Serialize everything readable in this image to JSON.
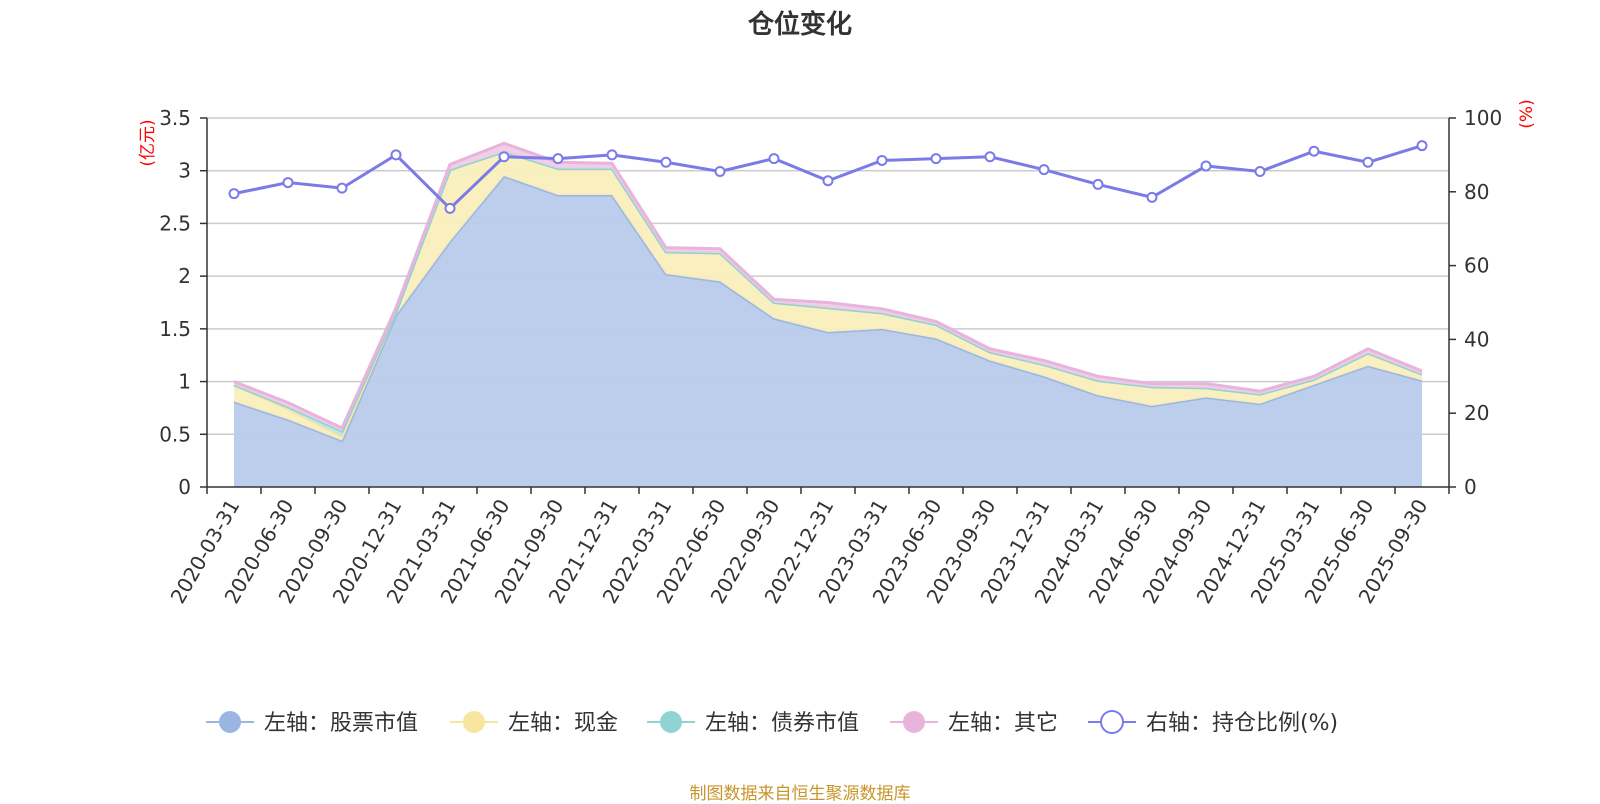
{
  "chart_data": {
    "type": "area",
    "title": "仓位变化",
    "source": "制图数据来自恒生聚源数据库",
    "left_axis": {
      "unit": "(亿元)",
      "ylim": [
        0,
        3.5
      ],
      "ticks": [
        "0",
        "0.5",
        "1",
        "1.5",
        "2",
        "2.5",
        "3",
        "3.5"
      ]
    },
    "right_axis": {
      "unit": "(%)",
      "ylim": [
        0,
        100
      ],
      "ticks": [
        "0",
        "20",
        "40",
        "60",
        "80",
        "100"
      ]
    },
    "categories": [
      "2020-03-31",
      "2020-06-30",
      "2020-09-30",
      "2020-12-31",
      "2021-03-31",
      "2021-06-30",
      "2021-09-30",
      "2021-12-31",
      "2022-03-31",
      "2022-06-30",
      "2022-09-30",
      "2022-12-31",
      "2023-03-31",
      "2023-06-30",
      "2023-09-30",
      "2023-12-31",
      "2024-03-31",
      "2024-06-30",
      "2024-09-30",
      "2024-12-31",
      "2025-03-31",
      "2025-06-30",
      "2025-09-30"
    ],
    "series": [
      {
        "name": "左轴：股票市值",
        "axis": "left",
        "kind": "area",
        "color": "#9ab6e0",
        "fill": "#b8cbea",
        "values": [
          0.81,
          0.64,
          0.44,
          1.63,
          2.33,
          2.95,
          2.77,
          2.77,
          2.02,
          1.95,
          1.6,
          1.47,
          1.5,
          1.41,
          1.2,
          1.05,
          0.87,
          0.77,
          0.85,
          0.79,
          0.97,
          1.15,
          1.01
        ]
      },
      {
        "name": "左轴：现金",
        "axis": "left",
        "kind": "area",
        "color": "#f8e6a0",
        "fill": "#faeeba",
        "values": [
          0.16,
          0.1,
          0.04,
          0.03,
          0.68,
          0.23,
          0.25,
          0.25,
          0.21,
          0.27,
          0.15,
          0.23,
          0.15,
          0.13,
          0.08,
          0.11,
          0.14,
          0.18,
          0.09,
          0.09,
          0.05,
          0.12,
          0.06
        ]
      },
      {
        "name": "左轴：债券市值",
        "axis": "left",
        "kind": "area",
        "color": "#8fd3d3",
        "fill": "#bfe6e6",
        "values": [
          0,
          0.02,
          0.05,
          0,
          0,
          0,
          0,
          0,
          0,
          0,
          0,
          0,
          0,
          0,
          0,
          0,
          0,
          0,
          0,
          0,
          0,
          0,
          0
        ]
      },
      {
        "name": "左轴：其它",
        "axis": "left",
        "kind": "area",
        "color": "#e8b4dc",
        "fill": "#f0cce6",
        "values": [
          0.03,
          0.04,
          0.03,
          0.04,
          0.05,
          0.08,
          0.06,
          0.05,
          0.04,
          0.04,
          0.03,
          0.05,
          0.04,
          0.03,
          0.03,
          0.04,
          0.04,
          0.03,
          0.04,
          0.03,
          0.03,
          0.04,
          0.03
        ]
      },
      {
        "name": "右轴：持仓比例(%)",
        "axis": "right",
        "kind": "line",
        "color": "#7b7be8",
        "values": [
          79.5,
          82.5,
          81,
          90,
          75.5,
          89.5,
          89,
          90,
          88,
          85.5,
          89,
          83,
          88.5,
          89,
          89.5,
          86,
          82,
          78.5,
          87,
          85.5,
          91,
          88,
          92.5
        ]
      }
    ]
  }
}
